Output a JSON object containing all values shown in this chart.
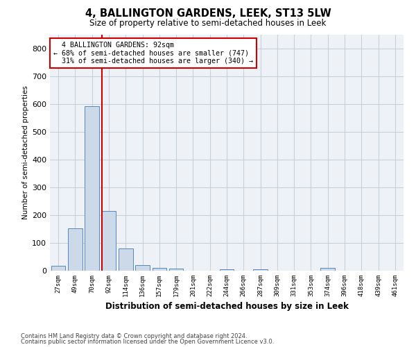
{
  "title": "4, BALLINGTON GARDENS, LEEK, ST13 5LW",
  "subtitle": "Size of property relative to semi-detached houses in Leek",
  "xlabel": "Distribution of semi-detached houses by size in Leek",
  "ylabel": "Number of semi-detached properties",
  "categories": [
    "27sqm",
    "49sqm",
    "70sqm",
    "92sqm",
    "114sqm",
    "136sqm",
    "157sqm",
    "179sqm",
    "201sqm",
    "222sqm",
    "244sqm",
    "266sqm",
    "287sqm",
    "309sqm",
    "331sqm",
    "353sqm",
    "374sqm",
    "396sqm",
    "418sqm",
    "439sqm",
    "461sqm"
  ],
  "values": [
    18,
    152,
    593,
    215,
    80,
    20,
    10,
    8,
    0,
    0,
    5,
    0,
    6,
    0,
    0,
    0,
    10,
    0,
    0,
    0,
    0
  ],
  "bar_color": "#ccd9e8",
  "bar_edge_color": "#5588bb",
  "pct_smaller": 68,
  "pct_larger": 31,
  "n_smaller": 747,
  "n_larger": 340,
  "property_label": "4 BALLINGTON GARDENS: 92sqm",
  "vline_index": 3,
  "vline_color": "#cc0000",
  "annotation_box_color": "#cc0000",
  "ylim": [
    0,
    850
  ],
  "yticks": [
    0,
    100,
    200,
    300,
    400,
    500,
    600,
    700,
    800
  ],
  "grid_color": "#c8d0dc",
  "bg_color": "#eef2f7",
  "footer1": "Contains HM Land Registry data © Crown copyright and database right 2024.",
  "footer2": "Contains public sector information licensed under the Open Government Licence v3.0."
}
